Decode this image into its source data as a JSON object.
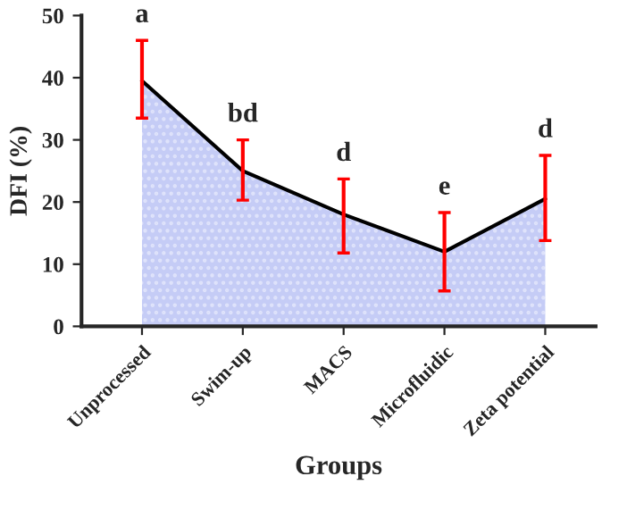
{
  "chart_data": {
    "type": "area",
    "xlabel": "Groups",
    "ylabel": "DFI (%)",
    "categories": [
      "Unprocessed",
      "Swim-up",
      "MACS",
      "Microfluidic",
      "Zeta potential"
    ],
    "series": [
      {
        "color": "#c5ccf6",
        "values": [
          39.5,
          25,
          18,
          12,
          20.5
        ],
        "errors": [
          [
            33.5,
            46
          ],
          [
            20.3,
            30
          ],
          [
            11.8,
            23.7
          ],
          [
            5.7,
            18.3
          ],
          [
            13.8,
            27.5
          ]
        ]
      }
    ],
    "ylim": [
      0,
      50
    ],
    "yticks": [
      0,
      10,
      20,
      30,
      40,
      50
    ],
    "grid": false,
    "marker": "none",
    "line_style": "solid",
    "annotations": [
      "a",
      "bd",
      "d",
      "e",
      "d"
    ]
  }
}
